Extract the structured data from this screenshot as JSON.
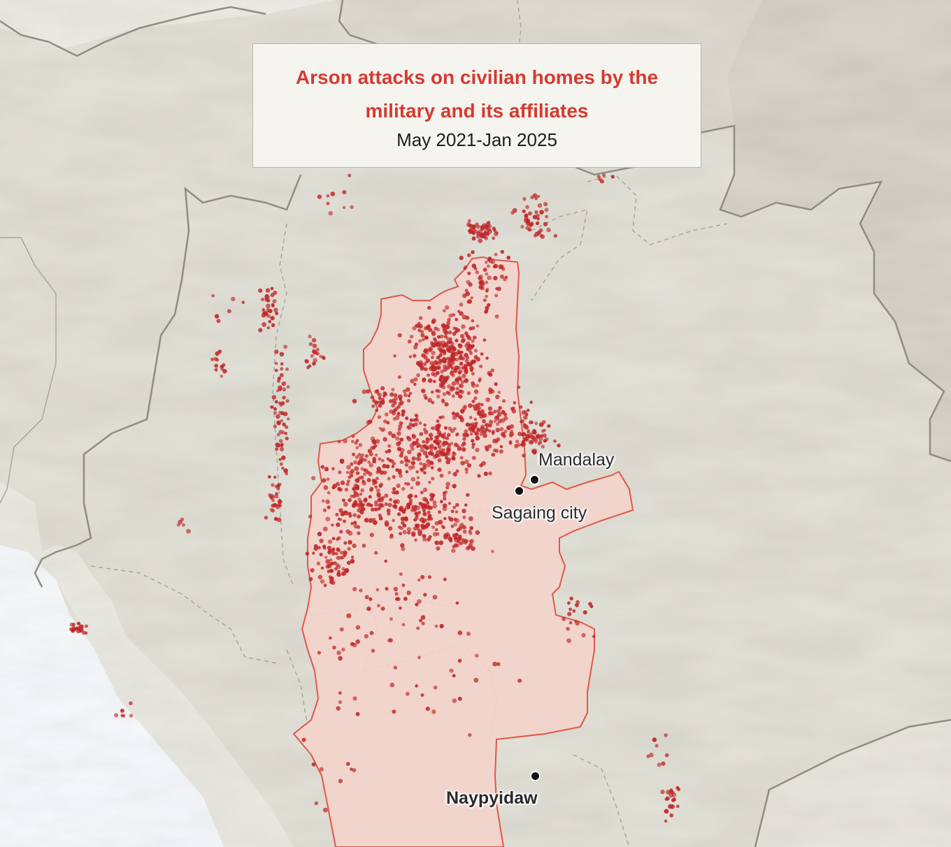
{
  "title": {
    "line": "Arson attacks on civilian homes by the military and its affiliates",
    "subtitle": "May 2021-Jan 2025"
  },
  "cities": {
    "mandalay": "Mandalay",
    "sagaing": "Sagaing city",
    "naypyidaw": "Naypyidaw"
  },
  "colors": {
    "attack_dot": "#c0282a",
    "region_fill": "#f3d2c9",
    "region_border": "#e0574b",
    "land": "#e0ded5",
    "sea": "#f4f7fb",
    "title_text": "#d33b30"
  }
}
